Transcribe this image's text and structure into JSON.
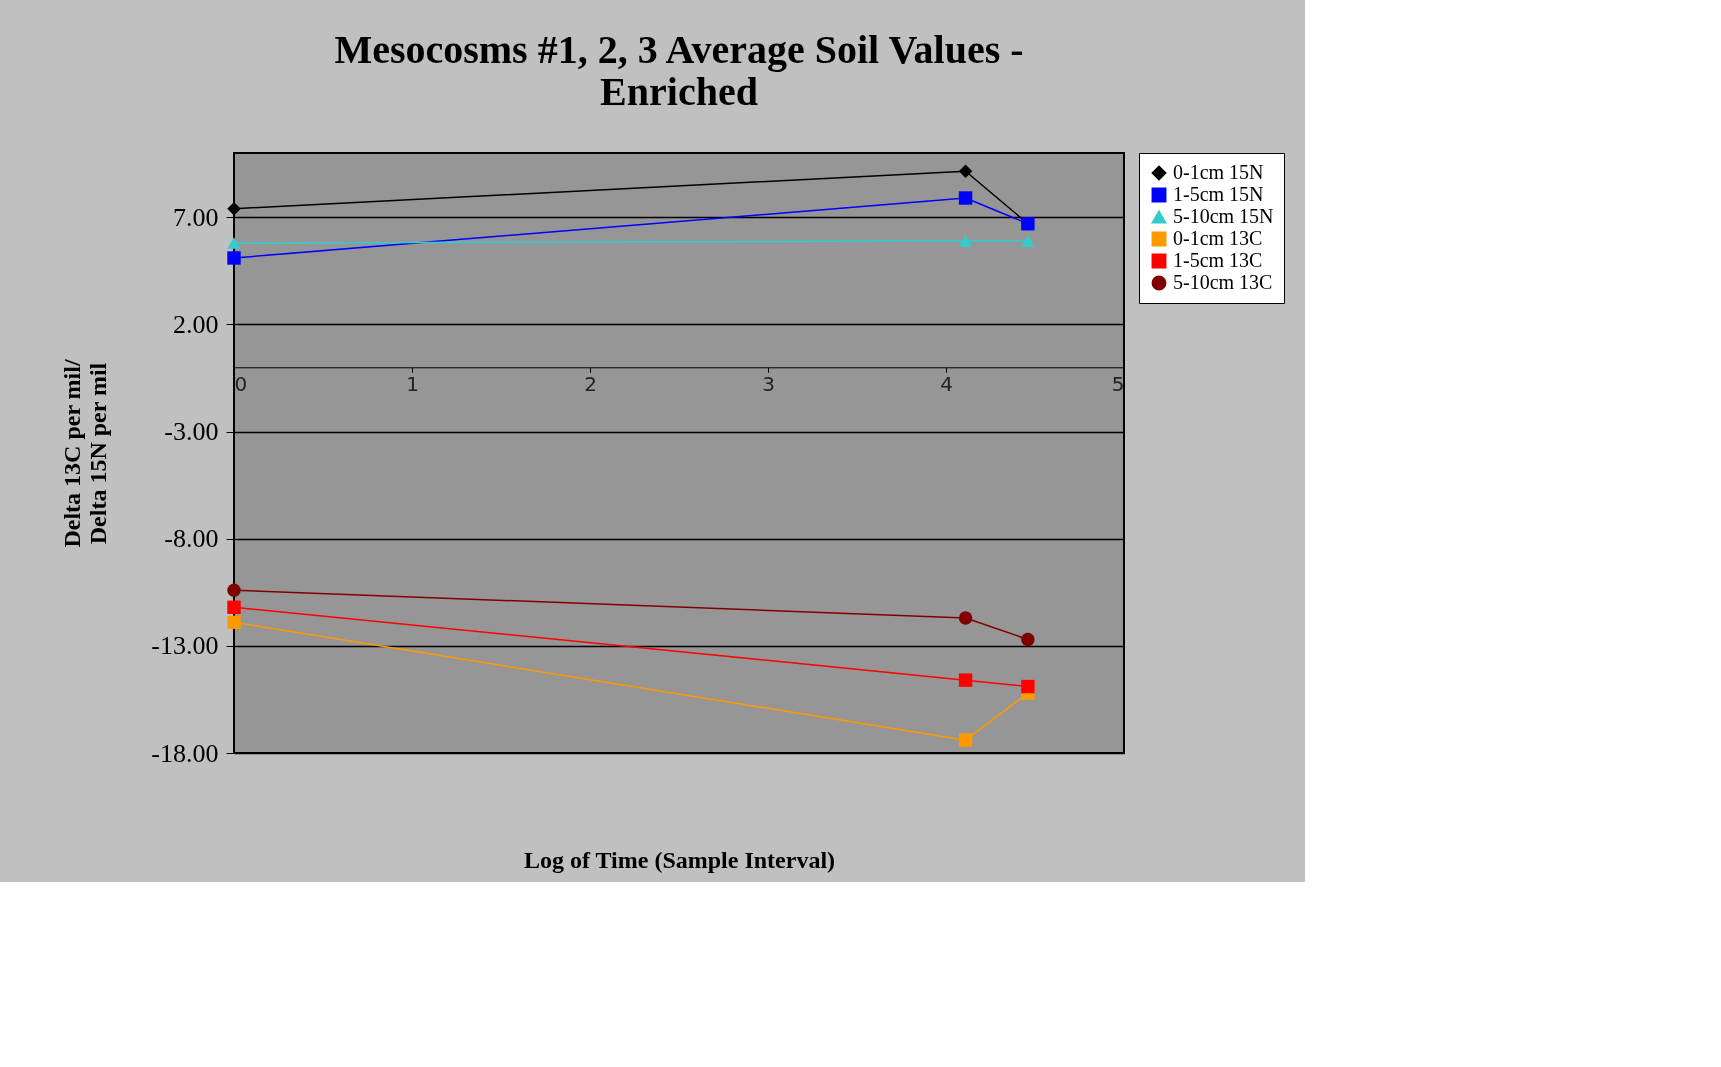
{
  "chart_data": {
    "type": "line",
    "title": [
      "Mesocosms #1, 2, 3 Average Soil Values -",
      "Enriched"
    ],
    "xlabel": "Log of Time (Sample Interval)",
    "ylabel": [
      "Delta 13C per mil/",
      "Delta 15N per mil"
    ],
    "xlim": [
      0,
      5
    ],
    "xticks": [
      0,
      1,
      2,
      3,
      4,
      5
    ],
    "ylim": [
      -18,
      10
    ],
    "yticks": [
      {
        "value": -18,
        "label": "-18.00"
      },
      {
        "value": -13,
        "label": "-13.00"
      },
      {
        "value": -8,
        "label": "-8.00"
      },
      {
        "value": -3,
        "label": "-3.00"
      },
      {
        "value": 2,
        "label": "2.00"
      },
      {
        "value": 7,
        "label": "7.00"
      }
    ],
    "grid": "y",
    "legend": "right",
    "series": [
      {
        "name": "0-1cm 15N",
        "color": "#000000",
        "marker": "diamond",
        "x": [
          0,
          4.11,
          4.46
        ],
        "values": [
          7.4,
          9.15,
          6.7
        ]
      },
      {
        "name": "1-5cm 15N",
        "color": "#0000ff",
        "marker": "square",
        "x": [
          0,
          4.11,
          4.46
        ],
        "values": [
          5.1,
          7.9,
          6.7
        ]
      },
      {
        "name": "5-10cm 15N",
        "color": "#33cccc",
        "marker": "triangle",
        "x": [
          0,
          4.11,
          4.46
        ],
        "values": [
          5.8,
          5.9,
          5.9
        ]
      },
      {
        "name": "0-1cm 13C",
        "color": "#ff9900",
        "marker": "square",
        "x": [
          0,
          4.11,
          4.46
        ],
        "values": [
          -11.9,
          -17.4,
          -15.2
        ]
      },
      {
        "name": "1-5cm 13C",
        "color": "#ff0000",
        "marker": "square",
        "x": [
          0,
          4.11,
          4.46
        ],
        "values": [
          -11.2,
          -14.6,
          -14.9
        ]
      },
      {
        "name": "5-10cm 13C",
        "color": "#800000",
        "marker": "circle",
        "x": [
          0,
          4.11,
          4.46
        ],
        "values": [
          -10.4,
          -11.7,
          -12.7
        ]
      }
    ]
  }
}
